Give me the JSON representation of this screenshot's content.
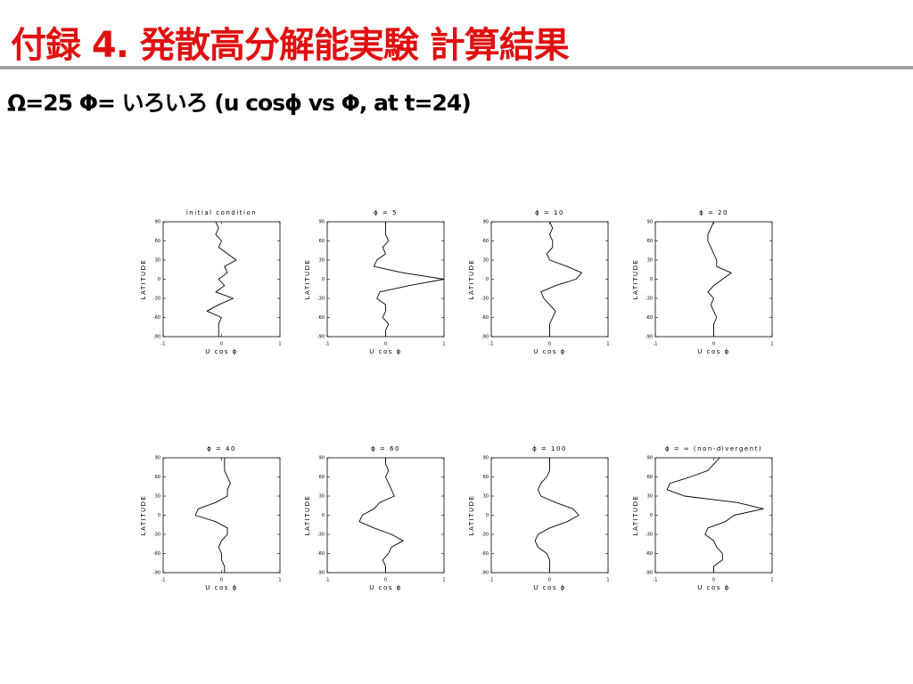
{
  "header": {
    "title": "付録 4. 発散高分解能実験 計算結果",
    "subtitle": "Ω=25 Φ= いろいろ (u cosϕ vs Φ, at t=24)"
  },
  "chart_data": [
    {
      "type": "line",
      "title": "initial condition",
      "x_label": "U cos ϕ",
      "y_label": "LATITUDE",
      "xlim": [
        -1,
        1
      ],
      "xticks": [
        -1,
        0,
        1
      ],
      "ylim": [
        -90,
        90
      ],
      "yticks": [
        -90,
        -60,
        -30,
        0,
        30,
        60,
        90
      ],
      "y": [
        -90,
        -80,
        -70,
        -60,
        -50,
        -40,
        -30,
        -20,
        -10,
        0,
        10,
        20,
        30,
        40,
        50,
        60,
        70,
        80,
        90
      ],
      "values": [
        -0.05,
        -0.05,
        -0.05,
        0,
        -0.25,
        -0.05,
        0.2,
        -0.1,
        0.05,
        -0.05,
        0.1,
        0.05,
        0.25,
        0.1,
        -0.05,
        0,
        -0.1,
        -0.05,
        -0.1
      ],
      "color": "#000000"
    },
    {
      "type": "line",
      "title": "ϕ = 5",
      "x_label": "U cos ϕ",
      "y_label": "LATITUDE",
      "xlim": [
        -1,
        1
      ],
      "xticks": [
        -1,
        0,
        1
      ],
      "ylim": [
        -90,
        90
      ],
      "yticks": [
        -90,
        -60,
        -30,
        0,
        30,
        60,
        90
      ],
      "y": [
        -90,
        -80,
        -70,
        -60,
        -50,
        -40,
        -30,
        -20,
        -10,
        0,
        10,
        20,
        30,
        40,
        50,
        60,
        70,
        80,
        90
      ],
      "values": [
        0,
        0,
        0.05,
        -0.05,
        0,
        0,
        -0.15,
        -0.1,
        0.4,
        1.0,
        0.3,
        -0.2,
        -0.15,
        0,
        -0.05,
        0.05,
        0,
        0,
        0
      ],
      "color": "#000000"
    },
    {
      "type": "line",
      "title": "ϕ = 10",
      "x_label": "U cos ϕ",
      "y_label": "LATITUDE",
      "xlim": [
        -1,
        1
      ],
      "xticks": [
        -1,
        0,
        1
      ],
      "ylim": [
        -90,
        90
      ],
      "yticks": [
        -90,
        -60,
        -30,
        0,
        30,
        60,
        90
      ],
      "y": [
        -90,
        -80,
        -70,
        -60,
        -50,
        -40,
        -30,
        -20,
        -10,
        0,
        10,
        20,
        30,
        40,
        50,
        60,
        70,
        80,
        90
      ],
      "values": [
        0,
        0,
        0,
        0.05,
        0.1,
        0,
        -0.1,
        -0.15,
        0.1,
        0.45,
        0.55,
        0.3,
        0,
        -0.05,
        0.05,
        0.05,
        0,
        0.05,
        0
      ],
      "color": "#000000"
    },
    {
      "type": "line",
      "title": "ϕ = 20",
      "x_label": "U cos ϕ",
      "y_label": "LATITUDE",
      "xlim": [
        -1,
        1
      ],
      "xticks": [
        -1,
        0,
        1
      ],
      "ylim": [
        -90,
        90
      ],
      "yticks": [
        -90,
        -60,
        -30,
        0,
        30,
        60,
        90
      ],
      "y": [
        -90,
        -80,
        -70,
        -60,
        -50,
        -40,
        -30,
        -20,
        -10,
        0,
        10,
        20,
        30,
        40,
        50,
        60,
        70,
        80,
        90
      ],
      "values": [
        0,
        0,
        0,
        0.05,
        0,
        -0.05,
        0,
        -0.1,
        0,
        0.15,
        0.3,
        0.05,
        0.05,
        0,
        -0.05,
        -0.1,
        -0.1,
        -0.05,
        0
      ],
      "color": "#000000"
    },
    {
      "type": "line",
      "title": "ϕ = 40",
      "x_label": "U cos ϕ",
      "y_label": "LATITUDE",
      "xlim": [
        -1,
        1
      ],
      "xticks": [
        -1,
        0,
        1
      ],
      "ylim": [
        -90,
        90
      ],
      "yticks": [
        -90,
        -60,
        -30,
        0,
        30,
        60,
        90
      ],
      "y": [
        -90,
        -80,
        -70,
        -60,
        -50,
        -40,
        -30,
        -20,
        -10,
        0,
        10,
        20,
        30,
        40,
        50,
        60,
        70,
        80,
        90
      ],
      "values": [
        0.05,
        0.05,
        0,
        0,
        -0.05,
        0,
        0.1,
        0.1,
        -0.1,
        -0.45,
        -0.4,
        -0.1,
        0.1,
        0.1,
        0.15,
        0.1,
        0.05,
        0.05,
        0.05
      ],
      "color": "#000000"
    },
    {
      "type": "line",
      "title": "ϕ = 60",
      "x_label": "U cos ϕ",
      "y_label": "LATITUDE",
      "xlim": [
        -1,
        1
      ],
      "xticks": [
        -1,
        0,
        1
      ],
      "ylim": [
        -90,
        90
      ],
      "yticks": [
        -90,
        -60,
        -30,
        0,
        30,
        60,
        90
      ],
      "y": [
        -90,
        -80,
        -70,
        -60,
        -50,
        -40,
        -30,
        -20,
        -10,
        0,
        10,
        20,
        30,
        40,
        50,
        60,
        70,
        80,
        90
      ],
      "values": [
        0,
        0,
        -0.05,
        0.05,
        0.1,
        0.3,
        0.1,
        -0.2,
        -0.45,
        -0.4,
        -0.2,
        -0.1,
        0.15,
        0.1,
        0.05,
        0,
        0.05,
        0,
        0
      ],
      "color": "#000000"
    },
    {
      "type": "line",
      "title": "ϕ = 100",
      "x_label": "U cos ϕ",
      "y_label": "LATITUDE",
      "xlim": [
        -1,
        1
      ],
      "xticks": [
        -1,
        0,
        1
      ],
      "ylim": [
        -90,
        90
      ],
      "yticks": [
        -90,
        -60,
        -30,
        0,
        30,
        60,
        90
      ],
      "y": [
        -90,
        -80,
        -70,
        -60,
        -50,
        -40,
        -30,
        -20,
        -10,
        0,
        10,
        20,
        30,
        40,
        50,
        60,
        70,
        80,
        90
      ],
      "values": [
        0,
        0,
        0,
        -0.05,
        -0.2,
        -0.25,
        -0.2,
        0,
        0.3,
        0.5,
        0.4,
        0.1,
        -0.15,
        -0.2,
        -0.15,
        -0.05,
        0,
        0,
        0
      ],
      "color": "#000000"
    },
    {
      "type": "line",
      "title": "ϕ = ∞ (non-divergent)",
      "x_label": "U cos ϕ",
      "y_label": "LATITUDE",
      "xlim": [
        -1,
        1
      ],
      "xticks": [
        -1,
        0,
        1
      ],
      "ylim": [
        -90,
        90
      ],
      "yticks": [
        -90,
        -60,
        -30,
        0,
        30,
        60,
        90
      ],
      "y": [
        -90,
        -80,
        -70,
        -60,
        -50,
        -40,
        -30,
        -20,
        -10,
        0,
        10,
        20,
        30,
        40,
        50,
        60,
        70,
        80,
        90
      ],
      "values": [
        0,
        0,
        0.15,
        0.15,
        0.05,
        0,
        -0.15,
        -0.1,
        0.2,
        0.35,
        0.85,
        0.4,
        -0.5,
        -0.8,
        -0.75,
        -0.4,
        -0.1,
        0,
        0.1
      ],
      "color": "#000000"
    }
  ]
}
